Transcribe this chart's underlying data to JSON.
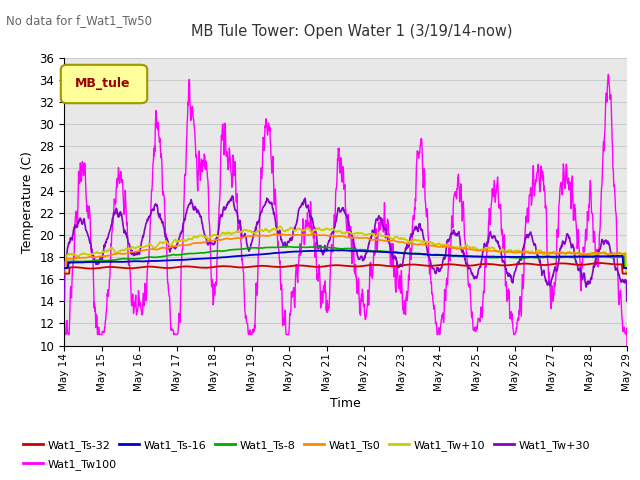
{
  "title": "MB Tule Tower: Open Water 1 (3/19/14-now)",
  "no_data_text": "No data for f_Wat1_Tw50",
  "xlabel": "Time",
  "ylabel": "Temperature (C)",
  "ylim": [
    10,
    36
  ],
  "yticks": [
    10,
    12,
    14,
    16,
    18,
    20,
    22,
    24,
    26,
    28,
    30,
    32,
    34,
    36
  ],
  "legend_label": "MB_tule",
  "legend_box_color": "#ffff99",
  "legend_box_edge": "#999900",
  "xtick_labels": [
    "May 14",
    "May 15",
    "May 16",
    "May 17",
    "May 18",
    "May 19",
    "May 20",
    "May 21",
    "May 22",
    "May 23",
    "May 24",
    "May 25",
    "May 26",
    "May 27",
    "May 28",
    "May 29"
  ],
  "series_colors": {
    "Wat1_Ts-32": "#cc0000",
    "Wat1_Ts-16": "#0000cc",
    "Wat1_Ts-8": "#00aa00",
    "Wat1_Ts0": "#ff8800",
    "Wat1_Tw+10": "#cccc00",
    "Wat1_Tw+30": "#8800cc",
    "Wat1_Tw100": "#ff00ff"
  },
  "background_color": "#ffffff",
  "plot_bg_color": "#e8e8e8",
  "grid_color": "#cccccc"
}
